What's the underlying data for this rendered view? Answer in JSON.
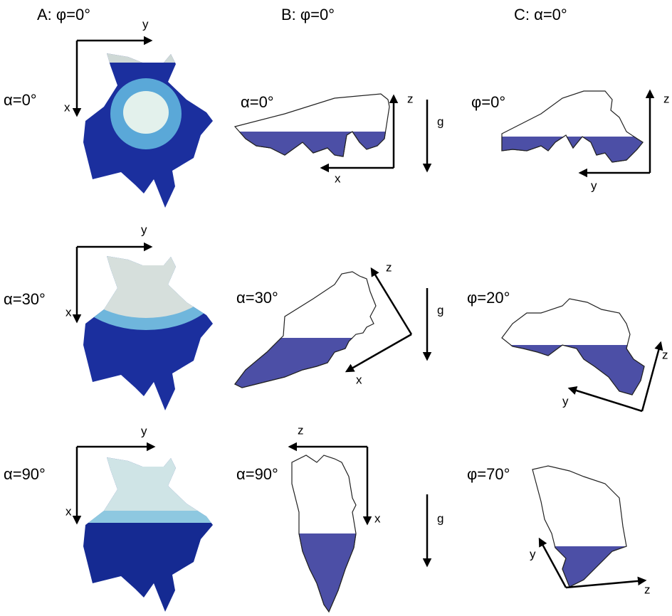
{
  "headers": [
    "A: φ=0°",
    "B: φ=0°",
    "C: α=0°"
  ],
  "rows": [
    {
      "a": {
        "label": "α=0°",
        "x": "x",
        "y": "y"
      },
      "b": {
        "label": "α=0°",
        "z": "z",
        "x": "x"
      },
      "g": "g",
      "c": {
        "label": "φ=0°",
        "z": "z",
        "y": "y"
      }
    },
    {
      "a": {
        "label": "α=30°",
        "x": "x",
        "y": "y"
      },
      "b": {
        "label": "α=30°",
        "z": "z",
        "x": "x"
      },
      "g": "g",
      "c": {
        "label": "φ=20°",
        "z": "z",
        "y": "y"
      }
    },
    {
      "a": {
        "label": "α=90°",
        "x": "x",
        "y": "y"
      },
      "b": {
        "label": "α=90°",
        "z": "z",
        "x": "x"
      },
      "g": "g",
      "c": {
        "label": "φ=70°",
        "y": "y",
        "z": "z"
      }
    }
  ]
}
